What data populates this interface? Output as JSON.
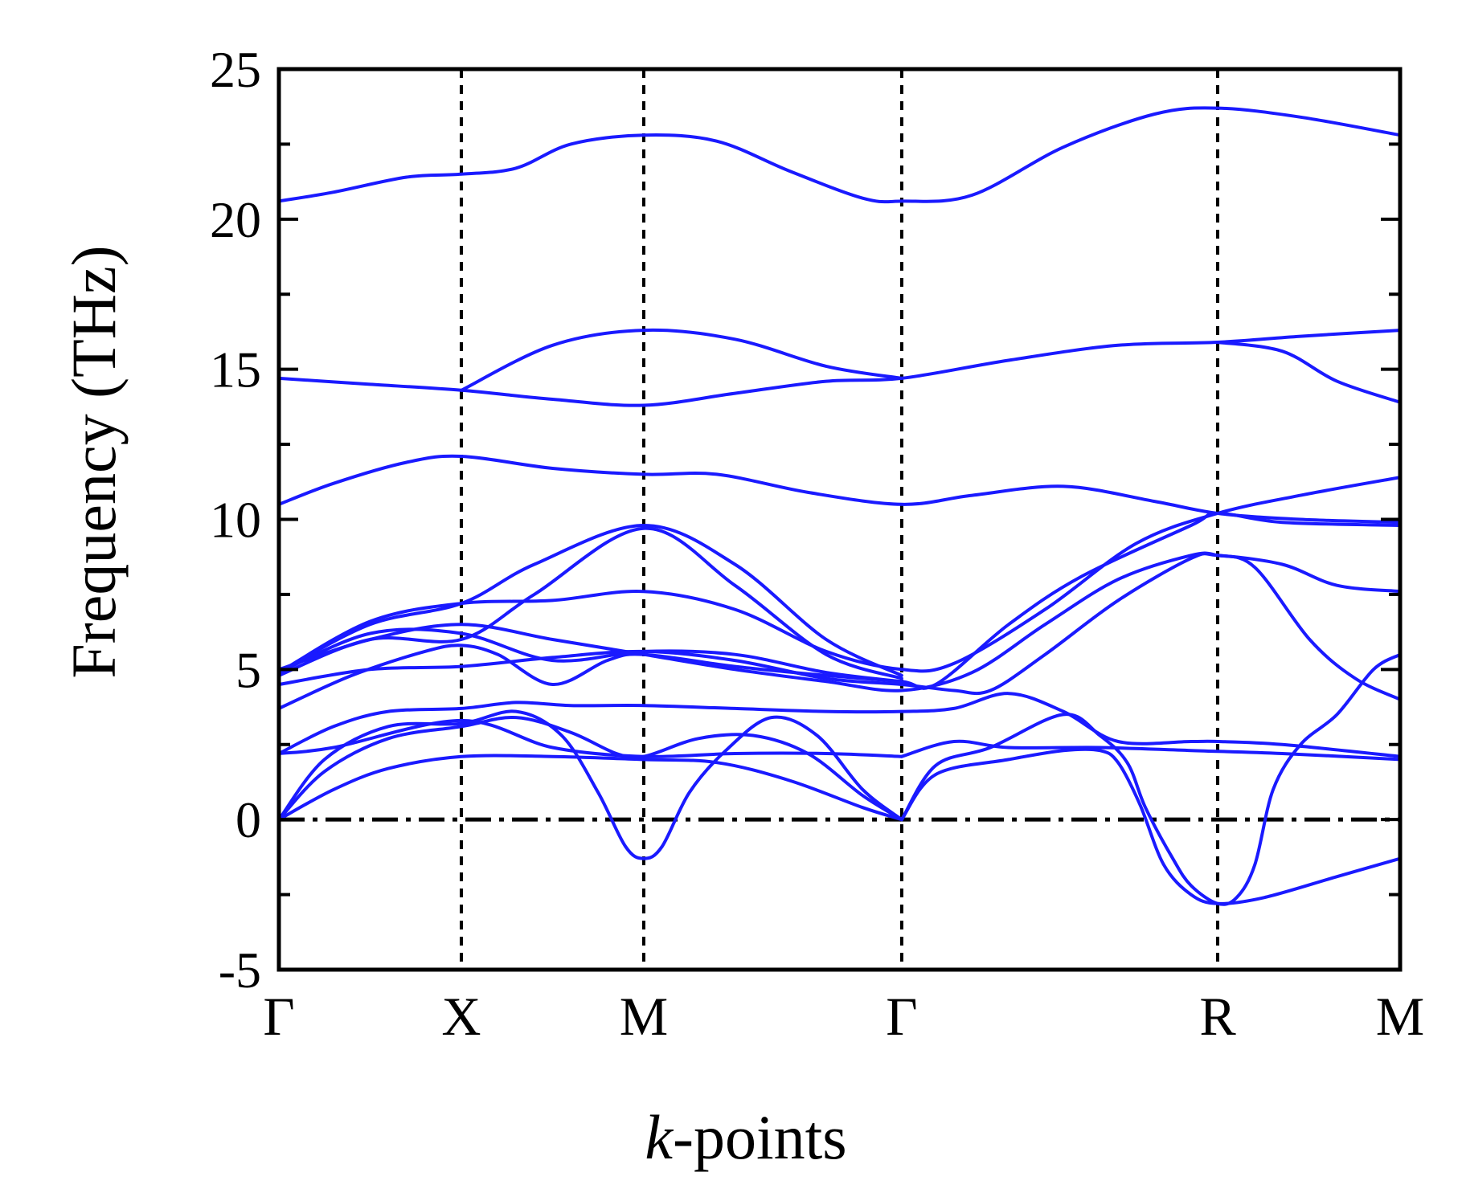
{
  "chart_data": {
    "type": "line",
    "xlabel_italic": "k",
    "xlabel_rest": "-points",
    "ylabel": "Frequency (THz)",
    "ylim": [
      -5,
      25
    ],
    "yticks": [
      {
        "value": 25,
        "label": "25"
      },
      {
        "value": 20,
        "label": "20"
      },
      {
        "value": 15,
        "label": "15"
      },
      {
        "value": 10,
        "label": "10"
      },
      {
        "value": 5,
        "label": "5"
      },
      {
        "value": 0,
        "label": "0"
      },
      {
        "value": -5,
        "label": "-5"
      }
    ],
    "kpoints": [
      {
        "pos": 0.0,
        "label": "Γ"
      },
      {
        "pos": 1.0,
        "label": "X"
      },
      {
        "pos": 2.0,
        "label": "M"
      },
      {
        "pos": 3.414,
        "label": "Γ"
      },
      {
        "pos": 5.146,
        "label": "R"
      },
      {
        "pos": 6.146,
        "label": "M"
      }
    ],
    "xlim": [
      0,
      6.146
    ],
    "zero_line": {
      "style": "dash-dot",
      "value": 0
    },
    "vertical_lines": {
      "style": "dotted"
    },
    "line_color": "#1a1aff",
    "series": [
      {
        "points": [
          [
            0,
            0
          ],
          [
            0.3,
            1.0
          ],
          [
            0.6,
            1.7
          ],
          [
            1.0,
            2.1
          ],
          [
            1.5,
            2.1
          ],
          [
            2.0,
            2.0
          ],
          [
            2.4,
            1.9
          ],
          [
            2.8,
            1.3
          ],
          [
            3.2,
            0.4
          ],
          [
            3.414,
            0
          ]
        ]
      },
      {
        "points": [
          [
            0,
            0
          ],
          [
            0.25,
            1.6
          ],
          [
            0.6,
            2.7
          ],
          [
            1.0,
            3.1
          ],
          [
            1.3,
            3.4
          ],
          [
            1.6,
            2.9
          ],
          [
            1.85,
            2.2
          ],
          [
            2.0,
            2.1
          ],
          [
            2.3,
            2.7
          ],
          [
            2.6,
            2.8
          ],
          [
            2.9,
            2.2
          ],
          [
            3.2,
            0.8
          ],
          [
            3.414,
            0
          ]
        ]
      },
      {
        "points": [
          [
            0,
            0
          ],
          [
            0.25,
            2.0
          ],
          [
            0.6,
            3.1
          ],
          [
            1.0,
            3.2
          ],
          [
            1.3,
            3.6
          ],
          [
            1.55,
            2.8
          ],
          [
            1.75,
            0.9
          ],
          [
            1.9,
            -0.9
          ],
          [
            2.0,
            -1.3
          ],
          [
            2.1,
            -0.9
          ],
          [
            2.25,
            0.9
          ],
          [
            2.45,
            2.3
          ],
          [
            2.7,
            3.4
          ],
          [
            2.95,
            2.8
          ],
          [
            3.2,
            1.0
          ],
          [
            3.414,
            0
          ]
        ]
      },
      {
        "points": [
          [
            3.414,
            0
          ],
          [
            3.6,
            1.5
          ],
          [
            4.0,
            2.0
          ],
          [
            4.3,
            2.3
          ],
          [
            4.5,
            2.3
          ],
          [
            4.6,
            1.9
          ],
          [
            4.72,
            0.5
          ],
          [
            4.85,
            -1.5
          ],
          [
            5.0,
            -2.5
          ],
          [
            5.146,
            -2.8
          ],
          [
            5.4,
            -2.6
          ],
          [
            5.8,
            -1.9
          ],
          [
            6.146,
            -1.3
          ]
        ]
      },
      {
        "points": [
          [
            3.414,
            0
          ],
          [
            3.6,
            1.8
          ],
          [
            3.9,
            2.4
          ],
          [
            4.3,
            3.5
          ],
          [
            4.5,
            2.8
          ],
          [
            4.65,
            1.9
          ],
          [
            4.75,
            0.4
          ],
          [
            4.9,
            -1.3
          ],
          [
            5.0,
            -2.2
          ],
          [
            5.146,
            -2.8
          ],
          [
            5.25,
            -2.6
          ],
          [
            5.35,
            -1.5
          ],
          [
            5.45,
            1.0
          ],
          [
            5.6,
            2.5
          ],
          [
            5.8,
            3.5
          ],
          [
            6.0,
            5.0
          ],
          [
            6.146,
            5.5
          ]
        ]
      },
      {
        "points": [
          [
            0,
            2.2
          ],
          [
            0.3,
            3.1
          ],
          [
            0.6,
            3.6
          ],
          [
            1.0,
            3.7
          ],
          [
            1.3,
            3.9
          ],
          [
            1.6,
            3.8
          ],
          [
            2.0,
            3.8
          ],
          [
            2.5,
            3.7
          ],
          [
            3.0,
            3.6
          ],
          [
            3.414,
            3.6
          ],
          [
            3.7,
            3.7
          ],
          [
            4.0,
            4.2
          ],
          [
            4.3,
            3.6
          ],
          [
            4.6,
            2.6
          ],
          [
            5.0,
            2.6
          ],
          [
            5.146,
            2.6
          ],
          [
            5.5,
            2.5
          ],
          [
            6.146,
            2.1
          ]
        ]
      },
      {
        "points": [
          [
            3.414,
            2.1
          ],
          [
            3.7,
            2.6
          ],
          [
            4.0,
            2.4
          ],
          [
            4.5,
            2.4
          ],
          [
            5.0,
            2.3
          ],
          [
            5.5,
            2.2
          ],
          [
            6.146,
            2.0
          ]
        ]
      },
      {
        "points": [
          [
            0,
            2.2
          ],
          [
            0.3,
            2.4
          ],
          [
            1.0,
            3.3
          ],
          [
            1.5,
            2.4
          ],
          [
            2.0,
            2.1
          ],
          [
            2.5,
            2.2
          ],
          [
            3.0,
            2.2
          ],
          [
            3.414,
            2.1
          ]
        ]
      },
      {
        "points": [
          [
            0,
            3.7
          ],
          [
            0.4,
            4.8
          ],
          [
            0.8,
            5.6
          ],
          [
            1.0,
            5.8
          ],
          [
            1.2,
            5.5
          ],
          [
            1.5,
            4.5
          ],
          [
            1.8,
            5.3
          ],
          [
            2.0,
            5.5
          ],
          [
            2.5,
            5.1
          ],
          [
            3.0,
            4.8
          ],
          [
            3.414,
            4.6
          ]
        ]
      },
      {
        "points": [
          [
            0,
            4.5
          ],
          [
            0.5,
            5.0
          ],
          [
            1.0,
            5.1
          ],
          [
            1.5,
            5.4
          ],
          [
            2.0,
            5.6
          ],
          [
            2.5,
            5.3
          ],
          [
            3.0,
            4.7
          ],
          [
            3.414,
            4.5
          ],
          [
            3.7,
            4.3
          ],
          [
            3.9,
            4.3
          ],
          [
            4.2,
            5.5
          ],
          [
            4.6,
            7.3
          ],
          [
            5.0,
            8.7
          ],
          [
            5.146,
            8.8
          ],
          [
            5.5,
            8.5
          ],
          [
            5.8,
            7.8
          ],
          [
            6.146,
            7.6
          ]
        ]
      },
      {
        "points": [
          [
            0,
            5.0
          ],
          [
            0.5,
            6.0
          ],
          [
            1.0,
            6.5
          ],
          [
            1.5,
            6.0
          ],
          [
            2.0,
            5.5
          ],
          [
            2.5,
            5.0
          ],
          [
            3.0,
            4.6
          ],
          [
            3.414,
            4.3
          ],
          [
            3.8,
            4.9
          ],
          [
            4.2,
            6.5
          ],
          [
            4.6,
            8.0
          ],
          [
            5.0,
            8.8
          ],
          [
            5.146,
            8.8
          ],
          [
            5.35,
            8.4
          ],
          [
            5.65,
            6.0
          ],
          [
            5.9,
            4.7
          ],
          [
            6.146,
            4.0
          ]
        ]
      },
      {
        "points": [
          [
            0,
            4.9
          ],
          [
            0.5,
            6.2
          ],
          [
            1.0,
            6.2
          ],
          [
            1.5,
            5.3
          ],
          [
            2.0,
            5.6
          ],
          [
            2.5,
            5.5
          ],
          [
            3.0,
            4.9
          ],
          [
            3.414,
            4.6
          ],
          [
            3.6,
            4.5
          ],
          [
            4.0,
            6.5
          ],
          [
            4.4,
            8.1
          ],
          [
            5.0,
            9.8
          ],
          [
            5.146,
            10.2
          ],
          [
            5.5,
            9.9
          ],
          [
            6.146,
            9.8
          ]
        ]
      },
      {
        "points": [
          [
            0,
            4.9
          ],
          [
            0.5,
            6.6
          ],
          [
            1.0,
            7.2
          ],
          [
            1.5,
            7.3
          ],
          [
            2.0,
            7.6
          ],
          [
            2.5,
            7.0
          ],
          [
            3.0,
            5.6
          ],
          [
            3.414,
            5.0
          ],
          [
            3.7,
            5.2
          ],
          [
            4.2,
            7.0
          ],
          [
            4.7,
            9.2
          ],
          [
            5.146,
            10.2
          ],
          [
            5.6,
            10.8
          ],
          [
            6.146,
            11.4
          ]
        ]
      },
      {
        "points": [
          [
            0,
            4.9
          ],
          [
            0.5,
            6.5
          ],
          [
            1.0,
            7.2
          ],
          [
            1.4,
            8.5
          ],
          [
            2.0,
            9.8
          ],
          [
            2.5,
            8.5
          ],
          [
            3.0,
            6.0
          ],
          [
            3.414,
            4.8
          ]
        ]
      },
      {
        "points": [
          [
            0,
            4.8
          ],
          [
            0.5,
            6.0
          ],
          [
            1.0,
            6.0
          ],
          [
            1.4,
            7.5
          ],
          [
            2.0,
            9.7
          ],
          [
            2.5,
            7.8
          ],
          [
            3.0,
            5.5
          ],
          [
            3.414,
            4.7
          ]
        ]
      },
      {
        "points": [
          [
            0,
            10.5
          ],
          [
            0.3,
            11.2
          ],
          [
            0.7,
            11.9
          ],
          [
            1.0,
            12.1
          ],
          [
            1.5,
            11.7
          ],
          [
            2.0,
            11.5
          ],
          [
            2.4,
            11.5
          ],
          [
            2.9,
            10.9
          ],
          [
            3.414,
            10.5
          ],
          [
            3.8,
            10.8
          ],
          [
            4.3,
            11.1
          ],
          [
            4.8,
            10.6
          ],
          [
            5.146,
            10.2
          ],
          [
            5.6,
            10.0
          ],
          [
            6.146,
            9.9
          ]
        ]
      },
      {
        "points": [
          [
            0,
            14.7
          ],
          [
            0.5,
            14.5
          ],
          [
            1.0,
            14.3
          ],
          [
            1.5,
            14.0
          ],
          [
            2.0,
            13.8
          ],
          [
            2.5,
            14.2
          ],
          [
            3.0,
            14.6
          ],
          [
            3.414,
            14.7
          ],
          [
            4.0,
            15.3
          ],
          [
            4.6,
            15.8
          ],
          [
            5.146,
            15.9
          ],
          [
            5.6,
            16.1
          ],
          [
            6.146,
            16.3
          ]
        ]
      },
      {
        "points": [
          [
            1.0,
            14.3
          ],
          [
            1.5,
            15.8
          ],
          [
            2.0,
            16.3
          ],
          [
            2.5,
            16.0
          ],
          [
            3.0,
            15.1
          ],
          [
            3.414,
            14.7
          ]
        ]
      },
      {
        "points": [
          [
            5.146,
            15.9
          ],
          [
            5.5,
            15.6
          ],
          [
            5.8,
            14.6
          ],
          [
            6.146,
            13.9
          ]
        ]
      },
      {
        "points": [
          [
            0,
            20.6
          ],
          [
            0.3,
            20.9
          ],
          [
            0.7,
            21.4
          ],
          [
            1.0,
            21.5
          ],
          [
            1.3,
            21.7
          ],
          [
            1.6,
            22.5
          ],
          [
            2.0,
            22.8
          ],
          [
            2.4,
            22.6
          ],
          [
            2.8,
            21.6
          ],
          [
            3.2,
            20.7
          ],
          [
            3.414,
            20.6
          ],
          [
            3.8,
            20.8
          ],
          [
            4.3,
            22.4
          ],
          [
            4.8,
            23.5
          ],
          [
            5.146,
            23.7
          ],
          [
            5.6,
            23.4
          ],
          [
            6.146,
            22.8
          ]
        ]
      }
    ]
  }
}
